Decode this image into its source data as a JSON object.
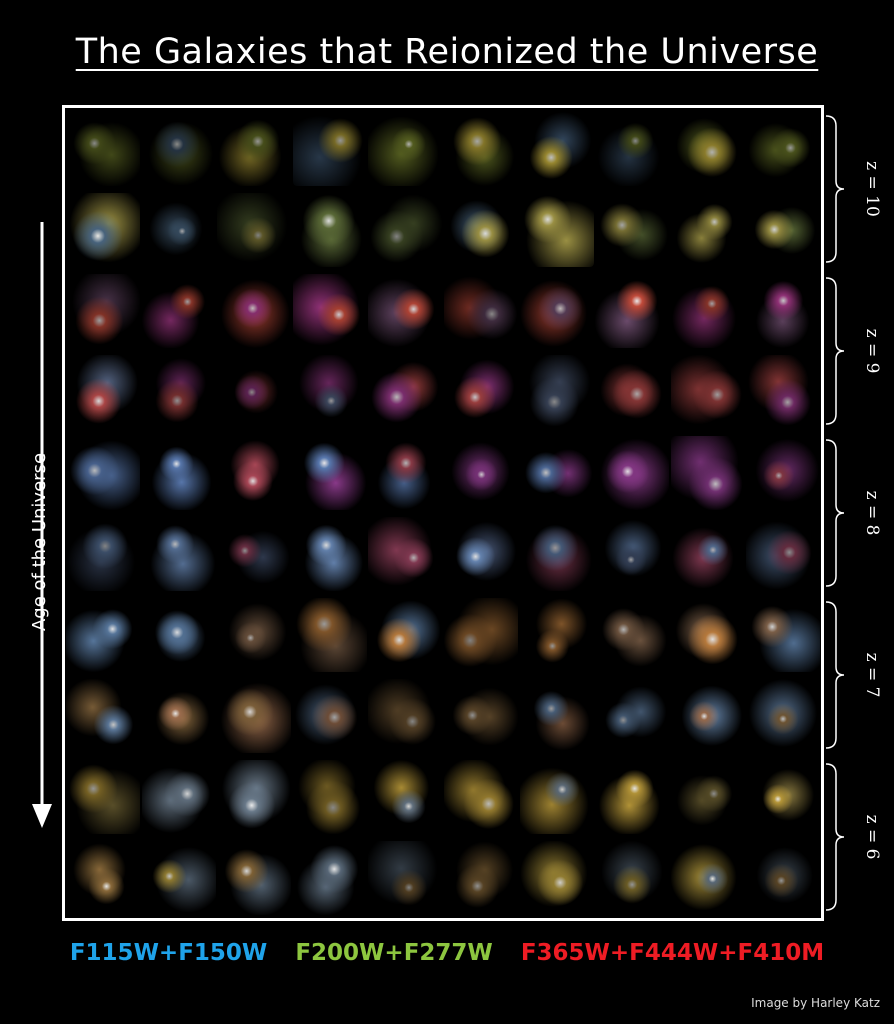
{
  "title": "The Galaxies that Reionized the Universe",
  "axis_label": "Age of the Universe",
  "redshift_groups": [
    {
      "label": "z = 10",
      "rows": [
        0,
        1
      ]
    },
    {
      "label": "z = 9",
      "rows": [
        2,
        3
      ]
    },
    {
      "label": "z = 8",
      "rows": [
        4,
        5
      ]
    },
    {
      "label": "z = 7",
      "rows": [
        6,
        7
      ]
    },
    {
      "label": "z = 6",
      "rows": [
        8,
        9
      ]
    }
  ],
  "filters": [
    {
      "label": "F115W+F150W",
      "color": "#1fa3ea"
    },
    {
      "label": "F200W+F277W",
      "color": "#8dc63f"
    },
    {
      "label": "F365W+F444W+F410M",
      "color": "#ee1c24"
    }
  ],
  "credit": "Image by Harley Katz",
  "grid": {
    "rows": 10,
    "cols": 10,
    "row_palettes": [
      [
        "#b8a43a",
        "#6e7a2a",
        "#3e5670"
      ],
      [
        "#a59a48",
        "#5f6f3a",
        "#4a6680"
      ],
      [
        "#a83a8a",
        "#c04a3a",
        "#6a4a6a"
      ],
      [
        "#b84a4a",
        "#9a3a8a",
        "#5a6a8a"
      ],
      [
        "#8a3a8a",
        "#5a7ab0",
        "#b04a5a"
      ],
      [
        "#6a8ab8",
        "#a84a6a",
        "#4a5a7a"
      ],
      [
        "#c08040",
        "#8a6a50",
        "#5a7aa0"
      ],
      [
        "#a07050",
        "#6a8ab0",
        "#8a6a40"
      ],
      [
        "#b8983a",
        "#8a7a40",
        "#6a7a8a"
      ],
      [
        "#a8903a",
        "#8a6a3a",
        "#5a6a7a"
      ]
    ]
  }
}
